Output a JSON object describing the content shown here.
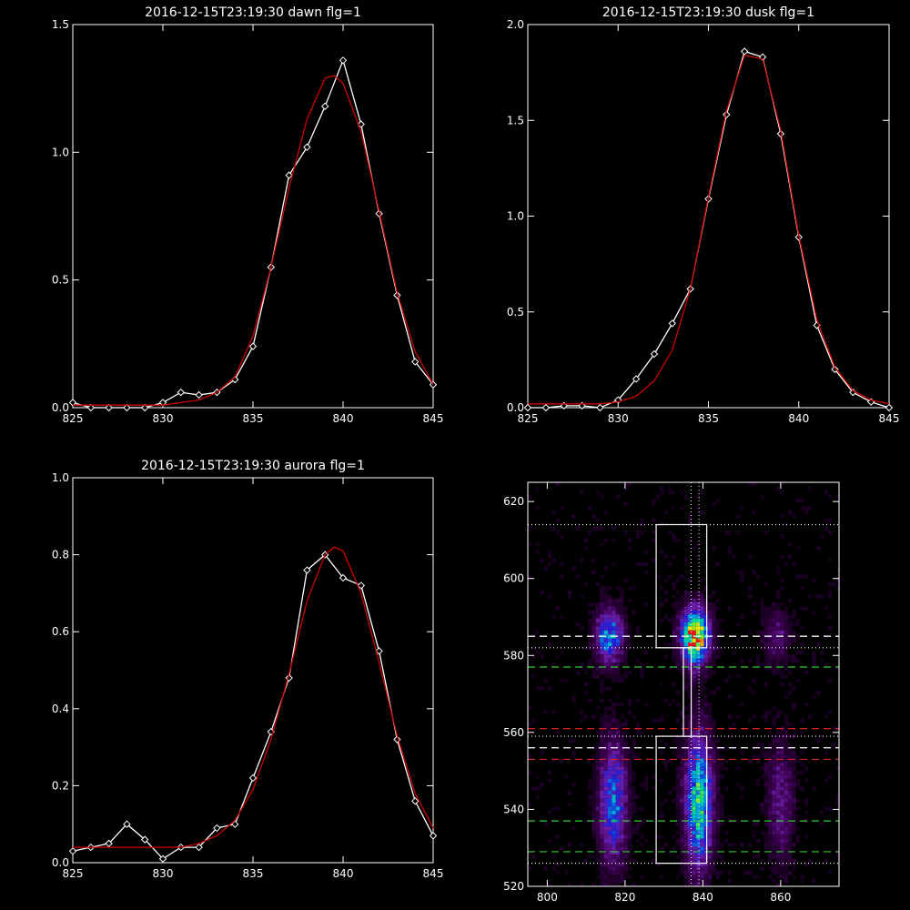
{
  "colors": {
    "background": "#000000",
    "axes": "#ffffff",
    "data_line": "#ffffff",
    "fit_line": "#cc0000",
    "green_dash": "#33cc33",
    "red_dash": "#dd2222"
  },
  "chart_data": [
    {
      "type": "line",
      "title": "2016-12-15T23:19:30 dawn flg=1",
      "xlim": [
        825,
        845
      ],
      "ylim": [
        0,
        1.5
      ],
      "xticks": [
        825,
        830,
        835,
        840,
        845
      ],
      "xtick_labels": [
        "825",
        "830",
        "835",
        "840",
        "845"
      ],
      "yticks": [
        0,
        0.5,
        1.0,
        1.5
      ],
      "ytick_labels": [
        "0.0",
        "0.5",
        "1.0",
        "1.5"
      ],
      "series": [
        {
          "style": "data",
          "x": [
            825,
            826,
            827,
            828,
            829,
            830,
            831,
            832,
            833,
            834,
            835,
            836,
            837,
            838,
            839,
            840,
            841,
            842,
            843,
            844,
            845
          ],
          "y": [
            0.02,
            0.0,
            0.0,
            0.0,
            0.0,
            0.02,
            0.06,
            0.05,
            0.06,
            0.11,
            0.24,
            0.55,
            0.91,
            1.02,
            1.18,
            1.36,
            1.11,
            0.76,
            0.44,
            0.18,
            0.09
          ]
        },
        {
          "style": "fit",
          "x": [
            825,
            826,
            827,
            828,
            829,
            830,
            831,
            832,
            833,
            834,
            835,
            836,
            837,
            838,
            839,
            839.5,
            840,
            841,
            842,
            843,
            844,
            845
          ],
          "y": [
            0.01,
            0.01,
            0.01,
            0.01,
            0.01,
            0.01,
            0.02,
            0.03,
            0.06,
            0.12,
            0.28,
            0.55,
            0.86,
            1.13,
            1.29,
            1.3,
            1.27,
            1.08,
            0.77,
            0.45,
            0.22,
            0.09
          ]
        }
      ]
    },
    {
      "type": "line",
      "title": "2016-12-15T23:19:30 dusk flg=1",
      "xlim": [
        825,
        845
      ],
      "ylim": [
        0,
        2.0
      ],
      "xticks": [
        825,
        830,
        835,
        840,
        845
      ],
      "xtick_labels": [
        "825",
        "830",
        "835",
        "840",
        "845"
      ],
      "yticks": [
        0,
        0.5,
        1.0,
        1.5,
        2.0
      ],
      "ytick_labels": [
        "0.0",
        "0.5",
        "1.0",
        "1.5",
        "2.0"
      ],
      "series": [
        {
          "style": "data",
          "x": [
            825,
            826,
            827,
            828,
            829,
            830,
            831,
            832,
            833,
            834,
            835,
            836,
            837,
            838,
            839,
            840,
            841,
            842,
            843,
            844,
            845
          ],
          "y": [
            0.0,
            0.0,
            0.01,
            0.01,
            0.0,
            0.04,
            0.15,
            0.28,
            0.44,
            0.62,
            1.09,
            1.53,
            1.86,
            1.83,
            1.43,
            0.89,
            0.43,
            0.2,
            0.08,
            0.03,
            0.0
          ]
        },
        {
          "style": "fit",
          "x": [
            825,
            826,
            827,
            828,
            829,
            830,
            831,
            832,
            833,
            834,
            835,
            836,
            837,
            838,
            839,
            840,
            841,
            842,
            843,
            844,
            845
          ],
          "y": [
            0.02,
            0.02,
            0.02,
            0.02,
            0.02,
            0.03,
            0.06,
            0.14,
            0.3,
            0.62,
            1.1,
            1.55,
            1.84,
            1.82,
            1.45,
            0.9,
            0.46,
            0.21,
            0.09,
            0.04,
            0.02
          ]
        }
      ]
    },
    {
      "type": "line",
      "title": "2016-12-15T23:19:30 aurora flg=1",
      "xlim": [
        825,
        845
      ],
      "ylim": [
        0,
        1.0
      ],
      "xticks": [
        825,
        830,
        835,
        840,
        845
      ],
      "xtick_labels": [
        "825",
        "830",
        "835",
        "840",
        "845"
      ],
      "yticks": [
        0,
        0.2,
        0.4,
        0.6,
        0.8,
        1.0
      ],
      "ytick_labels": [
        "0.0",
        "0.2",
        "0.4",
        "0.6",
        "0.8",
        "1.0"
      ],
      "series": [
        {
          "style": "data",
          "x": [
            825,
            826,
            827,
            828,
            829,
            830,
            831,
            832,
            833,
            834,
            835,
            836,
            837,
            838,
            839,
            840,
            841,
            842,
            843,
            844,
            845
          ],
          "y": [
            0.03,
            0.04,
            0.05,
            0.1,
            0.06,
            0.01,
            0.04,
            0.04,
            0.09,
            0.1,
            0.22,
            0.34,
            0.48,
            0.76,
            0.8,
            0.74,
            0.72,
            0.55,
            0.32,
            0.16,
            0.07
          ]
        },
        {
          "style": "fit",
          "x": [
            825,
            826,
            827,
            828,
            829,
            830,
            831,
            832,
            833,
            834,
            835,
            836,
            837,
            838,
            839,
            839.5,
            840,
            841,
            842,
            843,
            844,
            845
          ],
          "y": [
            0.04,
            0.04,
            0.04,
            0.04,
            0.04,
            0.04,
            0.04,
            0.05,
            0.07,
            0.11,
            0.19,
            0.32,
            0.49,
            0.68,
            0.8,
            0.82,
            0.81,
            0.7,
            0.52,
            0.33,
            0.18,
            0.09
          ]
        }
      ]
    },
    {
      "type": "heatmap",
      "xlim": [
        795,
        875
      ],
      "ylim": [
        520,
        625
      ],
      "xticks": [
        800,
        820,
        840,
        860
      ],
      "xtick_labels": [
        "800",
        "820",
        "840",
        "860"
      ],
      "yticks": [
        520,
        540,
        560,
        580,
        600,
        620
      ],
      "ytick_labels": [
        "520",
        "540",
        "560",
        "580",
        "600",
        "620"
      ],
      "blobs": [
        {
          "x": 816,
          "y": 585,
          "sx": 2.5,
          "sy": 5,
          "intensity": 0.55
        },
        {
          "x": 838,
          "y": 585,
          "sx": 2.5,
          "sy": 5,
          "intensity": 1.0
        },
        {
          "x": 859,
          "y": 585,
          "sx": 2.5,
          "sy": 5,
          "intensity": 0.22
        },
        {
          "x": 817,
          "y": 542,
          "sx": 2.5,
          "sy": 11,
          "intensity": 0.5
        },
        {
          "x": 839,
          "y": 542,
          "sx": 2.5,
          "sy": 12,
          "intensity": 0.7
        },
        {
          "x": 860,
          "y": 542,
          "sx": 2.5,
          "sy": 11,
          "intensity": 0.25
        }
      ],
      "boxes": [
        {
          "x0": 828,
          "x1": 841,
          "y0": 582,
          "y1": 614
        },
        {
          "x0": 828,
          "x1": 841,
          "y0": 526,
          "y1": 559
        }
      ],
      "connector": {
        "x0": 835,
        "x1": 837,
        "y0": 559,
        "y1": 582
      },
      "vlines_dotted_white": [
        837,
        839
      ],
      "hlines_dotted_white": [
        614,
        582,
        559,
        526
      ],
      "hlines_dashed_white": [
        585,
        556
      ],
      "hlines_dashed_green": [
        585,
        577,
        537,
        529
      ],
      "hlines_dashed_red": [
        561,
        553
      ]
    }
  ]
}
